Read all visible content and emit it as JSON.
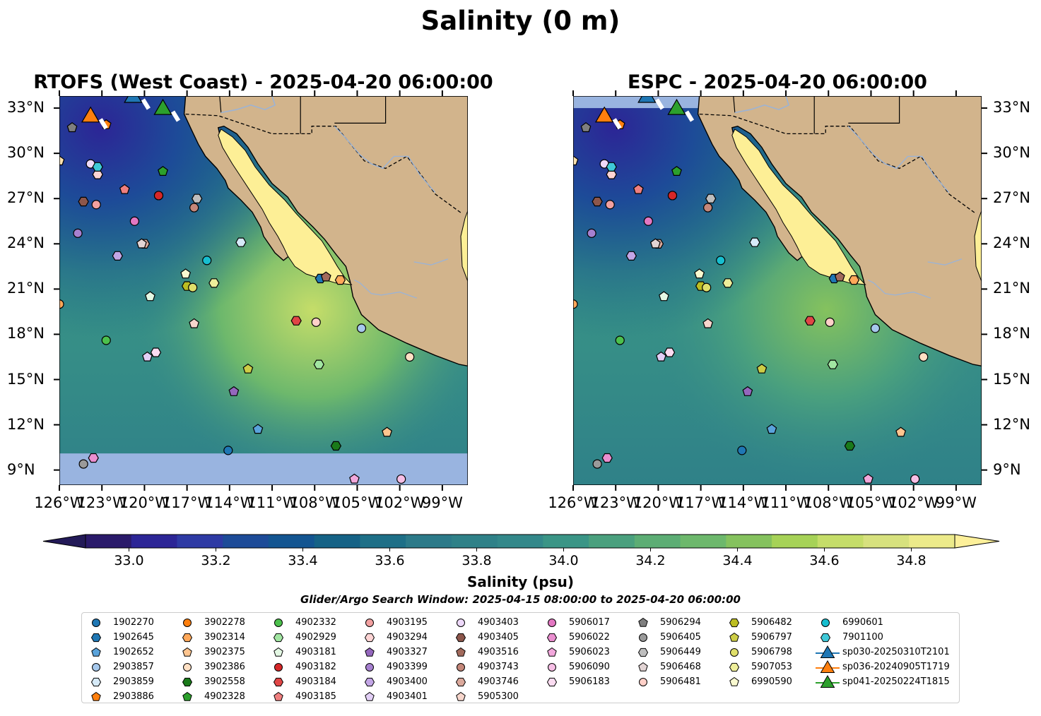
{
  "figure": {
    "title": "Salinity (0 m)",
    "search_window": "Glider/Argo Search Window: 2025-04-15 08:00:00 to 2025-04-20 06:00:00"
  },
  "panels": [
    {
      "title": "RTOFS (West Coast) - 2025-04-20 06:00:00",
      "model": "RTOFS"
    },
    {
      "title": "ESPC - 2025-04-20 06:00:00",
      "model": "ESPC"
    }
  ],
  "axes": {
    "lat_labels": [
      "33°N",
      "30°N",
      "27°N",
      "24°N",
      "21°N",
      "18°N",
      "15°N",
      "12°N",
      "9°N"
    ],
    "lat_values": [
      33,
      30,
      27,
      24,
      21,
      18,
      15,
      12,
      9
    ],
    "lon_labels": [
      "126°W",
      "123°W",
      "120°W",
      "117°W",
      "114°W",
      "111°W",
      "108°W",
      "105°W",
      "102°W",
      "99°W"
    ],
    "lon_values": [
      -126,
      -123,
      -120,
      -117,
      -114,
      -111,
      -108,
      -105,
      -102,
      -99
    ],
    "extent": {
      "lon_min": -126,
      "lon_max": -97.2,
      "lat_min": 8.0,
      "lat_max": 33.8
    }
  },
  "colorbar": {
    "label": "Salinity (psu)",
    "vmin": 32.9,
    "vmax": 34.9,
    "step": 0.1,
    "tick_labels": [
      "33.0",
      "33.2",
      "33.4",
      "33.6",
      "33.8",
      "34.0",
      "34.2",
      "34.4",
      "34.6",
      "34.8"
    ],
    "tick_values": [
      33.0,
      33.2,
      33.4,
      33.6,
      33.8,
      34.0,
      34.2,
      34.4,
      34.6,
      34.8
    ],
    "colors": [
      "#2a1a6a",
      "#2c2596",
      "#2e3aa4",
      "#1d4b98",
      "#135591",
      "#156286",
      "#1e6f87",
      "#2c7a89",
      "#2f8188",
      "#33888a",
      "#3a9586",
      "#4aa07e",
      "#5cad74",
      "#6db86c",
      "#85c25e",
      "#a6d257",
      "#c5dd69",
      "#d7e17e",
      "#ecea8a"
    ],
    "extend_low": "#231a58",
    "extend_high": "#fdf09a"
  },
  "colors": {
    "land": "#d2b48c",
    "no_data": "#99b4e0",
    "gulf": "#fdef96"
  },
  "legend": {
    "columns": [
      [
        {
          "label": "1902270",
          "marker": "circle",
          "color": "#1f77b4"
        },
        {
          "label": "1902645",
          "marker": "hexagon",
          "color": "#1f77b4"
        },
        {
          "label": "1902652",
          "marker": "pentagon",
          "color": "#5aa3db"
        },
        {
          "label": "2903857",
          "marker": "circle",
          "color": "#a6c8ec"
        },
        {
          "label": "2903859",
          "marker": "hexagon",
          "color": "#d6eaf8"
        },
        {
          "label": "2903886",
          "marker": "pentagon",
          "color": "#ff7f0e"
        }
      ],
      [
        {
          "label": "3902278",
          "marker": "circle",
          "color": "#ff7f0e"
        },
        {
          "label": "3902314",
          "marker": "hexagon",
          "color": "#ffa85a"
        },
        {
          "label": "3902375",
          "marker": "pentagon",
          "color": "#ffc58f"
        },
        {
          "label": "3902386",
          "marker": "circle",
          "color": "#ffe0c4"
        },
        {
          "label": "3902558",
          "marker": "hexagon",
          "color": "#1a7a1a"
        },
        {
          "label": "4902328",
          "marker": "pentagon",
          "color": "#2ca02c"
        }
      ],
      [
        {
          "label": "4902332",
          "marker": "circle",
          "color": "#4cc04c"
        },
        {
          "label": "4902929",
          "marker": "hexagon",
          "color": "#a2e6a2"
        },
        {
          "label": "4903181",
          "marker": "pentagon",
          "color": "#e4f8e4"
        },
        {
          "label": "4903182",
          "marker": "circle",
          "color": "#d62728"
        },
        {
          "label": "4903184",
          "marker": "hexagon",
          "color": "#e04646"
        },
        {
          "label": "4903185",
          "marker": "pentagon",
          "color": "#ef7f7f"
        }
      ],
      [
        {
          "label": "4903195",
          "marker": "circle",
          "color": "#f2a0a0"
        },
        {
          "label": "4903294",
          "marker": "hexagon",
          "color": "#fdd4d4"
        },
        {
          "label": "4903327",
          "marker": "pentagon",
          "color": "#9467bd"
        },
        {
          "label": "4903399",
          "marker": "circle",
          "color": "#a680d0"
        },
        {
          "label": "4903400",
          "marker": "hexagon",
          "color": "#c3a6e6"
        },
        {
          "label": "4903401",
          "marker": "pentagon",
          "color": "#e2cff6"
        }
      ],
      [
        {
          "label": "4903403",
          "marker": "circle",
          "color": "#eed9fa"
        },
        {
          "label": "4903405",
          "marker": "hexagon",
          "color": "#8c564b"
        },
        {
          "label": "4903516",
          "marker": "pentagon",
          "color": "#a26a5c"
        },
        {
          "label": "4903743",
          "marker": "circle",
          "color": "#c4877a"
        },
        {
          "label": "4903746",
          "marker": "hexagon",
          "color": "#dba99c"
        },
        {
          "label": "5905300",
          "marker": "pentagon",
          "color": "#f7d6cc"
        }
      ],
      [
        {
          "label": "5906017",
          "marker": "circle",
          "color": "#e377c2"
        },
        {
          "label": "5906022",
          "marker": "hexagon",
          "color": "#ea8fd0"
        },
        {
          "label": "5906023",
          "marker": "pentagon",
          "color": "#f2a8dc"
        },
        {
          "label": "5906090",
          "marker": "circle",
          "color": "#f7bfe6"
        },
        {
          "label": "5906183",
          "marker": "hexagon",
          "color": "#fbdcf1"
        }
      ],
      [
        {
          "label": "5906294",
          "marker": "pentagon",
          "color": "#7f7f7f"
        },
        {
          "label": "5906405",
          "marker": "circle",
          "color": "#9a9a9a"
        },
        {
          "label": "5906449",
          "marker": "hexagon",
          "color": "#bebebe"
        },
        {
          "label": "5906468",
          "marker": "pentagon",
          "color": "#e2d4d4"
        },
        {
          "label": "5906481",
          "marker": "circle",
          "color": "#ffd0c8"
        }
      ],
      [
        {
          "label": "5906482",
          "marker": "hexagon",
          "color": "#bcbd22"
        },
        {
          "label": "5906797",
          "marker": "pentagon",
          "color": "#cdcd46"
        },
        {
          "label": "5906798",
          "marker": "circle",
          "color": "#dfdf6a"
        },
        {
          "label": "5907053",
          "marker": "hexagon",
          "color": "#eeee9a"
        },
        {
          "label": "6990590",
          "marker": "pentagon",
          "color": "#fafad0"
        }
      ],
      [
        {
          "label": "6990601",
          "marker": "circle",
          "color": "#17becf"
        },
        {
          "label": "7901100",
          "marker": "hexagon",
          "color": "#3fc9d8"
        },
        {
          "label": "sp030-20250310T2101",
          "marker": "triangle",
          "color": "#1f77b4"
        },
        {
          "label": "sp036-20240905T1719",
          "marker": "triangle",
          "color": "#ff7f0e"
        },
        {
          "label": "sp041-20250224T1815",
          "marker": "triangle",
          "color": "#2ca02c"
        }
      ]
    ]
  },
  "floats": [
    {
      "id": "1902270",
      "lon": -114.1,
      "lat": 10.3
    },
    {
      "id": "1902645",
      "lon": -107.6,
      "lat": 21.7
    },
    {
      "id": "1902652",
      "lon": -112.0,
      "lat": 11.7
    },
    {
      "id": "2903857",
      "lon": -104.7,
      "lat": 18.4
    },
    {
      "id": "2903859",
      "lon": -113.2,
      "lat": 24.1
    },
    {
      "id": "2903886",
      "lon": -122.7,
      "lat": 31.9
    },
    {
      "id": "3902278",
      "lon": -119.0,
      "lat": 27.2
    },
    {
      "id": "3902314",
      "lon": -106.2,
      "lat": 21.6
    },
    {
      "id": "3902375",
      "lon": -102.9,
      "lat": 11.5
    },
    {
      "id": "3902386",
      "lon": -101.3,
      "lat": 16.5
    },
    {
      "id": "3902558",
      "lon": -106.5,
      "lat": 10.6
    },
    {
      "id": "4902328",
      "lon": -118.7,
      "lat": 28.8
    },
    {
      "id": "4902332",
      "lon": -122.7,
      "lat": 17.6
    },
    {
      "id": "4902929",
      "lon": -107.7,
      "lat": 16.0
    },
    {
      "id": "4903181",
      "lon": -119.6,
      "lat": 20.5
    },
    {
      "id": "4903182",
      "lon": -119.0,
      "lat": 27.2
    },
    {
      "id": "4903184",
      "lon": -109.3,
      "lat": 18.9
    },
    {
      "id": "4903185",
      "lon": -121.4,
      "lat": 27.6
    },
    {
      "id": "4903195",
      "lon": -123.4,
      "lat": 26.6
    },
    {
      "id": "4903294",
      "lon": -123.3,
      "lat": 28.6
    },
    {
      "id": "4903327",
      "lon": -113.7,
      "lat": 14.2
    },
    {
      "id": "4903399",
      "lon": -124.7,
      "lat": 24.7
    },
    {
      "id": "4903400",
      "lon": -121.9,
      "lat": 23.2
    },
    {
      "id": "4903401",
      "lon": -119.8,
      "lat": 16.5
    },
    {
      "id": "4903403",
      "lon": -123.8,
      "lat": 29.3
    },
    {
      "id": "4903405",
      "lon": -124.3,
      "lat": 26.8
    },
    {
      "id": "4903516",
      "lon": -107.2,
      "lat": 21.8
    },
    {
      "id": "4903743",
      "lon": -116.5,
      "lat": 26.4
    },
    {
      "id": "4903746",
      "lon": -120.0,
      "lat": 24.0
    },
    {
      "id": "5905300",
      "lon": -116.5,
      "lat": 18.7
    },
    {
      "id": "5906017",
      "lon": -120.7,
      "lat": 25.5
    },
    {
      "id": "5906022",
      "lon": -123.6,
      "lat": 9.8
    },
    {
      "id": "5906023",
      "lon": -105.2,
      "lat": 8.4
    },
    {
      "id": "5906090",
      "lon": -101.9,
      "lat": 8.4
    },
    {
      "id": "5906183",
      "lon": -119.2,
      "lat": 16.8
    },
    {
      "id": "5906294",
      "lon": -125.1,
      "lat": 31.7
    },
    {
      "id": "5906405",
      "lon": -124.3,
      "lat": 9.4
    },
    {
      "id": "5906449",
      "lon": -116.3,
      "lat": 27.0
    },
    {
      "id": "5906468",
      "lon": -120.2,
      "lat": 24.0
    },
    {
      "id": "5906481",
      "lon": -107.9,
      "lat": 18.8
    },
    {
      "id": "5906482",
      "lon": -117.0,
      "lat": 21.2
    },
    {
      "id": "5906797",
      "lon": -112.7,
      "lat": 15.7
    },
    {
      "id": "5906798",
      "lon": -116.6,
      "lat": 21.1
    },
    {
      "id": "5907053",
      "lon": -115.1,
      "lat": 21.4
    },
    {
      "id": "6990590",
      "lon": -117.1,
      "lat": 22.0
    },
    {
      "id": "6990601",
      "lon": -115.6,
      "lat": 22.9
    },
    {
      "id": "7901100",
      "lon": -123.3,
      "lat": 29.1
    },
    {
      "id": "X1",
      "lon": -126.0,
      "lat": 29.5,
      "color": "#fde3b0",
      "marker": "pentagon"
    },
    {
      "id": "X2",
      "lon": -126.0,
      "lat": 20.0,
      "color": "#ffa85a",
      "marker": "circle"
    }
  ],
  "gliders": [
    {
      "id": "sp030-20250310T2101",
      "lon": -120.8,
      "lat": 33.8
    },
    {
      "id": "sp036-20240905T1719",
      "lon": -123.8,
      "lat": 32.5
    },
    {
      "id": "sp041-20250224T1815",
      "lon": -118.7,
      "lat": 33.0
    }
  ]
}
